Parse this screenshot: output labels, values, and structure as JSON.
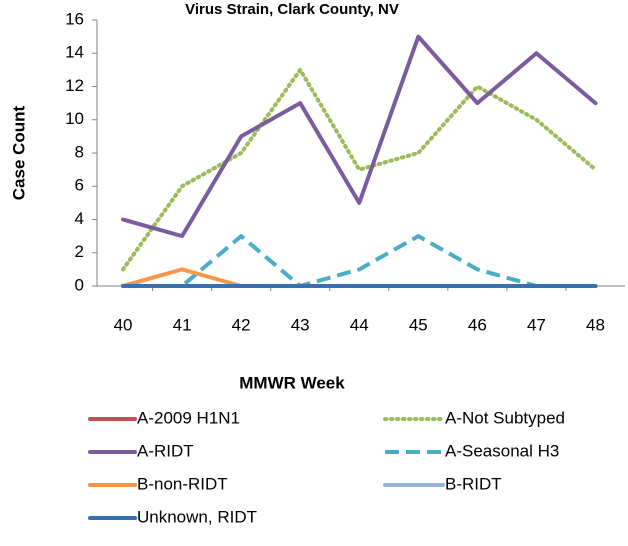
{
  "chart_data": {
    "type": "line",
    "title": "Virus Strain, Clark County, NV",
    "x_label": "MMWR Week",
    "y_label": "Case Count",
    "categories": [
      "40",
      "41",
      "42",
      "43",
      "44",
      "45",
      "46",
      "47",
      "48"
    ],
    "ylim": [
      0,
      16
    ],
    "yticks": [
      0,
      2,
      4,
      6,
      8,
      10,
      12,
      14,
      16
    ],
    "grid": false,
    "legend": "bottom",
    "series": [
      {
        "name": "A-2009 H1N1",
        "color": "#c0504d",
        "dash": "solid",
        "values": [
          0,
          0,
          0,
          0,
          0,
          0,
          0,
          0,
          0
        ]
      },
      {
        "name": "A-Not Subtyped",
        "color": "#9bbb59",
        "dash": "dotted",
        "values": [
          1,
          6,
          8,
          13,
          7,
          8,
          12,
          10,
          7
        ]
      },
      {
        "name": "A-RIDT",
        "color": "#7a5c9e",
        "dash": "solid",
        "values": [
          4,
          3,
          9,
          11,
          5,
          15,
          11,
          14,
          11
        ]
      },
      {
        "name": "A-Seasonal H3",
        "color": "#4bacc6",
        "dash": "dashed",
        "values": [
          0,
          0,
          3,
          0,
          1,
          3,
          1,
          0,
          0
        ]
      },
      {
        "name": "B-non-RIDT",
        "color": "#f79646",
        "dash": "solid",
        "values": [
          0,
          1,
          0,
          0,
          0,
          0,
          0,
          0,
          0
        ]
      },
      {
        "name": "B-RIDT",
        "color": "#95b3d7",
        "dash": "solid",
        "values": [
          0,
          0,
          0,
          0,
          0,
          0,
          0,
          0,
          0
        ]
      },
      {
        "name": "Unknown, RIDT",
        "color": "#3a6fb0",
        "dash": "solid",
        "values": [
          0,
          0,
          0,
          0,
          0,
          0,
          0,
          0,
          0
        ]
      }
    ]
  }
}
